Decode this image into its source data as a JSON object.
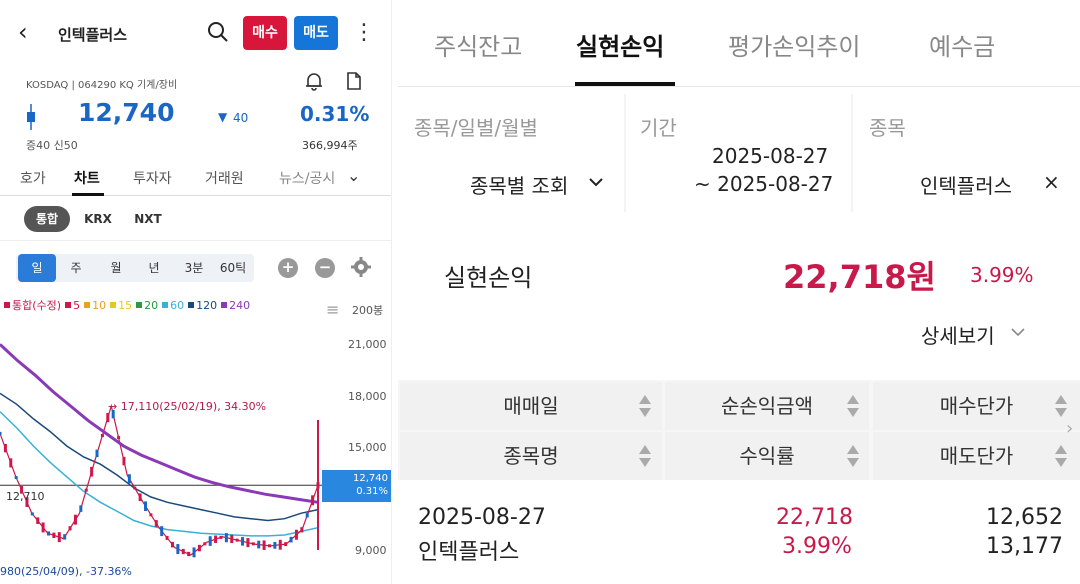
{
  "left": {
    "stock_name": "인텍플러스",
    "buy_label": "매수",
    "sell_label": "매도",
    "market_info": "KOSDAQ | 064290 KQ 기계/장비",
    "price": "12,740",
    "change": "40",
    "change_pct": "0.31%",
    "margin_info": "증40  신50",
    "volume": "366,994주",
    "tabs": [
      "호가",
      "차트",
      "투자자",
      "거래원",
      "뉴스/공시"
    ],
    "markets": [
      "통합",
      "KRX",
      "NXT"
    ],
    "periods": [
      "일",
      "주",
      "월",
      "년",
      "3분",
      "60틱"
    ],
    "legend": [
      {
        "label": "통합(수정)",
        "color": "#c8194a"
      },
      {
        "label": "5",
        "color": "#d0174a"
      },
      {
        "label": "10",
        "color": "#e8a21c"
      },
      {
        "label": "15",
        "color": "#e8c81c"
      },
      {
        "label": "20",
        "color": "#2e9a3a"
      },
      {
        "label": "60",
        "color": "#3ab0d8"
      },
      {
        "label": "120",
        "color": "#1a4a7a"
      },
      {
        "label": "240",
        "color": "#8a3ab8"
      }
    ],
    "chart_data": {
      "type": "line",
      "x": [],
      "y_ticks": [
        "21,000",
        "18,000",
        "15,000",
        "12,740",
        "9,000"
      ],
      "count_label": "200봉",
      "current_price_tag": {
        "price": "12,740",
        "pct": "0.31%"
      },
      "reference_line_label": "12,710",
      "annotations": [
        "→ 17,110(25/02/19), 34.30%",
        "980(25/04/09), -37.36%"
      ],
      "ma240_approx": [
        21800,
        21200,
        20500,
        19600,
        18800,
        17900,
        17100,
        16300,
        15600,
        14900,
        14400,
        14000,
        13600,
        13200,
        12900,
        12650,
        12450,
        12250,
        12100,
        11950
      ],
      "ma120_approx": [
        17800,
        17200,
        16400,
        15700,
        14900,
        14300,
        13900,
        13300,
        12600,
        12100,
        11800,
        11600,
        11400,
        11200,
        11000,
        10900,
        10800,
        10900,
        11200,
        11400
      ],
      "ma60_approx": [
        16800,
        15900,
        14900,
        14000,
        13200,
        12400,
        11800,
        11300,
        10800,
        10500,
        10300,
        10200,
        10100,
        10050,
        10000,
        9950,
        9950,
        10000,
        10200,
        10400
      ],
      "price_approx": [
        15600,
        13200,
        11200,
        10100,
        9800,
        11200,
        14200,
        17110,
        13300,
        11800,
        10400,
        9300,
        8900,
        9600,
        9900,
        9700,
        9500,
        9400,
        9500,
        10300,
        12740
      ]
    }
  },
  "right": {
    "tabs": [
      "주식잔고",
      "실현손익",
      "평가손익추이",
      "예수금"
    ],
    "filters": {
      "type_label": "종목/일별/월별",
      "type_value": "종목별 조회",
      "period_label": "기간",
      "period_from": "2025-08-27",
      "period_to": "~ 2025-08-27",
      "stock_label": "종목",
      "stock_value": "인텍플러스",
      "clear_glyph": "×"
    },
    "summary": {
      "label": "실현손익",
      "amount": "22,718원",
      "pct": "3.99%",
      "detail_label": "상세보기"
    },
    "table": {
      "headers_row1": [
        "매매일",
        "순손익금액",
        "매수단가"
      ],
      "headers_row2": [
        "종목명",
        "수익률",
        "매도단가"
      ],
      "rows": [
        {
          "date": "2025-08-27",
          "name": "인텍플러스",
          "net_profit": "22,718",
          "return": "3.99%",
          "buy_price": "12,652",
          "sell_price": "13,177"
        }
      ]
    }
  }
}
